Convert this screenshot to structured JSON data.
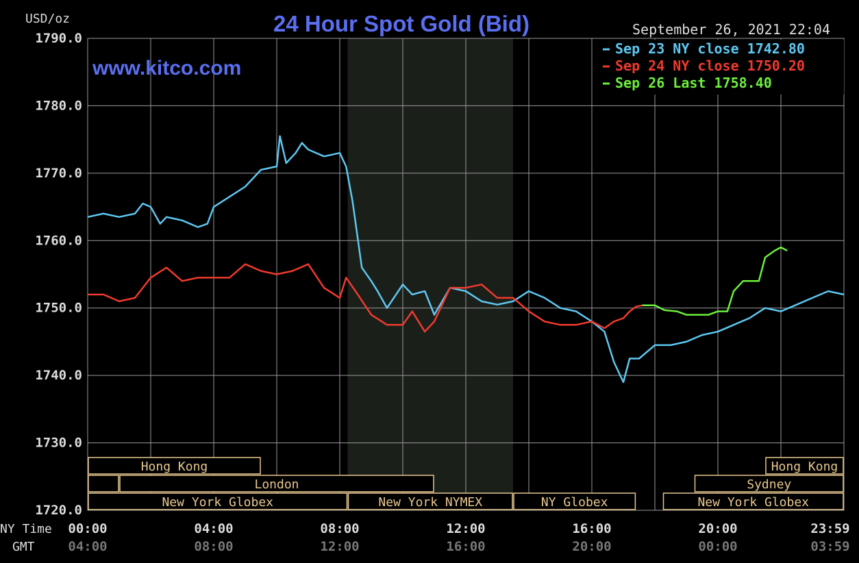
{
  "chart_data": {
    "type": "line",
    "title": "24 Hour Spot Gold (Bid)",
    "subtitle": "www.kitco.com",
    "ylabel": "USD/oz",
    "timestamp": "September 26, 2021 22:04",
    "ylim": [
      1720,
      1790
    ],
    "yticks": [
      "1790.0",
      "1780.0",
      "1770.0",
      "1760.0",
      "1750.0",
      "1740.0",
      "1730.0",
      "1720.0"
    ],
    "xlim": [
      0,
      24
    ],
    "row_labels": {
      "ny": "NY Time",
      "gmt": "GMT"
    },
    "x_ticks_ny": [
      "00:00",
      "04:00",
      "08:00",
      "12:00",
      "16:00",
      "20:00",
      "23:59"
    ],
    "x_ticks_gmt": [
      "04:00",
      "08:00",
      "12:00",
      "16:00",
      "20:00",
      "00:00",
      "03:59"
    ],
    "grid": true,
    "legend_position": "top-right",
    "nymex_shade_hours": [
      8.25,
      13.5
    ],
    "colors": {
      "sep23": "#5ec8f2",
      "sep24": "#f03a2e",
      "sep26": "#6cf03c",
      "title": "#5a6ef0",
      "grid": "#9a9a9a",
      "text": "#dddddd",
      "dim_text": "#777777",
      "session": "#e8c890"
    },
    "series": [
      {
        "name": "Sep 23 NY close 1742.80",
        "color": "#5ec8f2",
        "x": [
          0,
          0.5,
          1,
          1.5,
          1.75,
          2,
          2.3,
          2.5,
          3,
          3.5,
          3.8,
          4,
          4.5,
          5,
          5.5,
          6,
          6.1,
          6.3,
          6.6,
          6.8,
          7,
          7.5,
          8,
          8.2,
          8.4,
          8.7,
          9,
          9.2,
          9.5,
          10,
          10.3,
          10.7,
          11,
          11.5,
          12,
          12.5,
          13,
          13.5,
          14,
          14.5,
          15,
          15.5,
          16,
          16.4,
          16.7,
          17,
          17.2,
          17.5,
          18,
          18.5,
          19,
          19.5,
          20,
          20.5,
          21,
          21.5,
          22,
          22.5,
          23,
          23.5,
          24
        ],
        "y": [
          1763.5,
          1764,
          1763.5,
          1764,
          1765.5,
          1765,
          1762.5,
          1763.5,
          1763,
          1762,
          1762.5,
          1765,
          1766.5,
          1768,
          1770.5,
          1771,
          1775.5,
          1771.5,
          1773,
          1774.5,
          1773.5,
          1772.5,
          1773,
          1771,
          1766,
          1756,
          1754,
          1752.5,
          1750,
          1753.5,
          1752,
          1752.5,
          1749,
          1753,
          1752.5,
          1751,
          1750.5,
          1751,
          1752.5,
          1751.5,
          1750,
          1749.5,
          1748,
          1746.5,
          1742,
          1739,
          1742.5,
          1742.5,
          1744.5,
          1744.5,
          1745,
          1746,
          1746.5,
          1747.5,
          1748.5,
          1750,
          1749.5,
          1750.5,
          1751.5,
          1752.5,
          1752
        ]
      },
      {
        "name": "Sep 24 NY close 1750.20",
        "color": "#f03a2e",
        "x": [
          0,
          0.5,
          1,
          1.5,
          2,
          2.5,
          3,
          3.5,
          4,
          4.5,
          5,
          5.5,
          6,
          6.5,
          7,
          7.5,
          8,
          8.2,
          8.5,
          9,
          9.5,
          10,
          10.3,
          10.7,
          11,
          11.5,
          12,
          12.5,
          13,
          13.5,
          14,
          14.5,
          15,
          15.5,
          16,
          16.4,
          16.7,
          17,
          17.2,
          17.4,
          17.6
        ],
        "y": [
          1752,
          1752,
          1751,
          1751.5,
          1754.5,
          1756,
          1754,
          1754.5,
          1754.5,
          1754.5,
          1756.5,
          1755.5,
          1755,
          1755.5,
          1756.5,
          1753,
          1751.5,
          1754.5,
          1752.5,
          1749,
          1747.5,
          1747.5,
          1749.5,
          1746.5,
          1748,
          1753,
          1753,
          1753.5,
          1751.5,
          1751.5,
          1749.5,
          1748,
          1747.5,
          1747.5,
          1748,
          1747,
          1748,
          1748.5,
          1749.5,
          1750.2,
          1750.4
        ]
      },
      {
        "name": "Sep 26 Last 1758.40",
        "color": "#6cf03c",
        "x": [
          17.6,
          18,
          18.3,
          18.7,
          19,
          19.3,
          19.7,
          20,
          20.3,
          20.5,
          20.8,
          21,
          21.3,
          21.5,
          21.8,
          22,
          22.2
        ],
        "y": [
          1750.4,
          1750.4,
          1749.7,
          1749.5,
          1749,
          1749,
          1749,
          1749.5,
          1749.5,
          1752.5,
          1754,
          1754,
          1754,
          1757.5,
          1758.5,
          1759,
          1758.5
        ]
      }
    ],
    "sessions": {
      "row1": [
        {
          "label": "Hong Kong",
          "start": 0,
          "end": 5.5
        },
        {
          "label": "Hong Kong",
          "start": 21.5,
          "end": 24
        }
      ],
      "row2": [
        {
          "label": "",
          "start": 0,
          "end": 1
        },
        {
          "label": "London",
          "start": 1,
          "end": 11
        },
        {
          "label": "Sydney",
          "start": 19.25,
          "end": 24
        }
      ],
      "row3": [
        {
          "label": "New York Globex",
          "start": 0,
          "end": 8.25
        },
        {
          "label": "New York NYMEX",
          "start": 8.25,
          "end": 13.5
        },
        {
          "label": "NY Globex",
          "start": 13.5,
          "end": 17.4
        },
        {
          "label": "New York Globex",
          "start": 18.25,
          "end": 24
        }
      ]
    }
  }
}
